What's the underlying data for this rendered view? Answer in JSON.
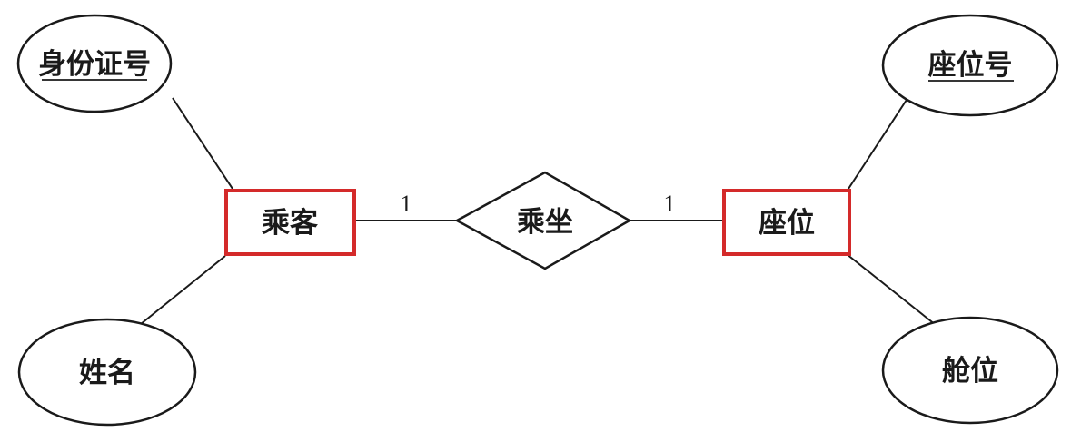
{
  "diagram": {
    "type": "er-diagram",
    "entities": {
      "passenger": {
        "label": "乘客"
      },
      "seat": {
        "label": "座位"
      }
    },
    "relationship": {
      "label": "乘坐"
    },
    "attributes": {
      "id_number": {
        "label": "身份证号",
        "key": true
      },
      "name": {
        "label": "姓名",
        "key": false
      },
      "seat_number": {
        "label": "座位号",
        "key": true
      },
      "cabin": {
        "label": "舱位",
        "key": false
      }
    },
    "cardinalities": {
      "passenger_side": "1",
      "seat_side": "1"
    },
    "colors": {
      "entity_border": "#d42a2a",
      "line": "#1a1a1a",
      "background": "#ffffff"
    }
  }
}
